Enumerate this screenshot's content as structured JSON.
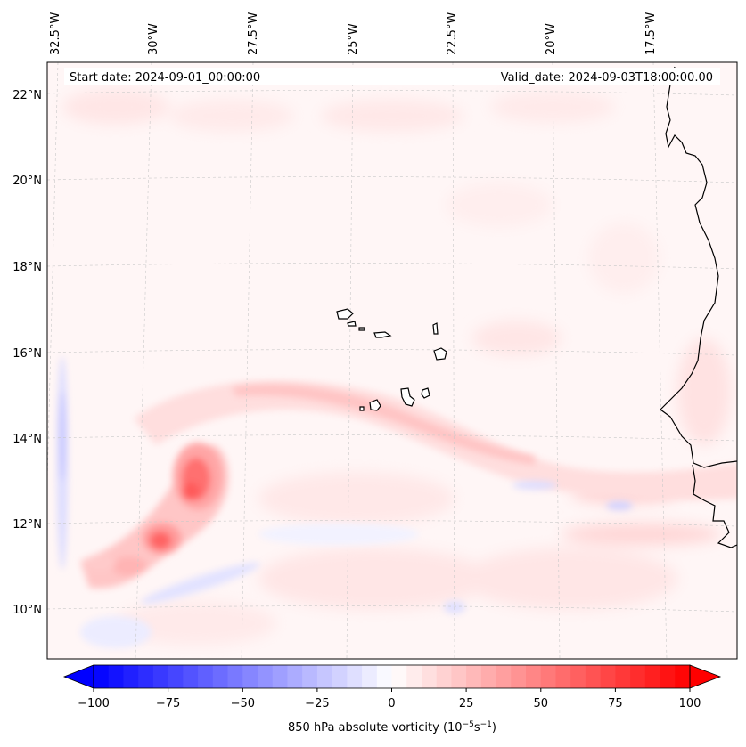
{
  "header": {
    "start_date": "Start date: 2024-09-01_00:00:00",
    "valid_date": "Valid_date: 2024-09-03T18:00:00.00"
  },
  "longitude_ticks": [
    "32.5°W",
    "30°W",
    "27.5°W",
    "25°W",
    "22.5°W",
    "20°W",
    "17.5°W"
  ],
  "latitude_ticks": [
    "22°N",
    "20°N",
    "18°N",
    "16°N",
    "14°N",
    "12°N",
    "10°N"
  ],
  "colorbar": {
    "tick_labels": [
      "−100",
      "−75",
      "−50",
      "−25",
      "0",
      "25",
      "50",
      "75",
      "100"
    ],
    "label_main": "850 hPa absolute vorticity (10",
    "label_exp1": "−5",
    "label_mid": "s",
    "label_exp2": "−1",
    "label_close": ")",
    "vmin": -100,
    "vmax": 100,
    "neg_color": "#0000ff",
    "pos_color": "#ff0000",
    "mid_color": "#ffffff"
  },
  "colors": {
    "frame": "#000000",
    "coastline": "#000000",
    "gridline": "#bbbbbb"
  }
}
